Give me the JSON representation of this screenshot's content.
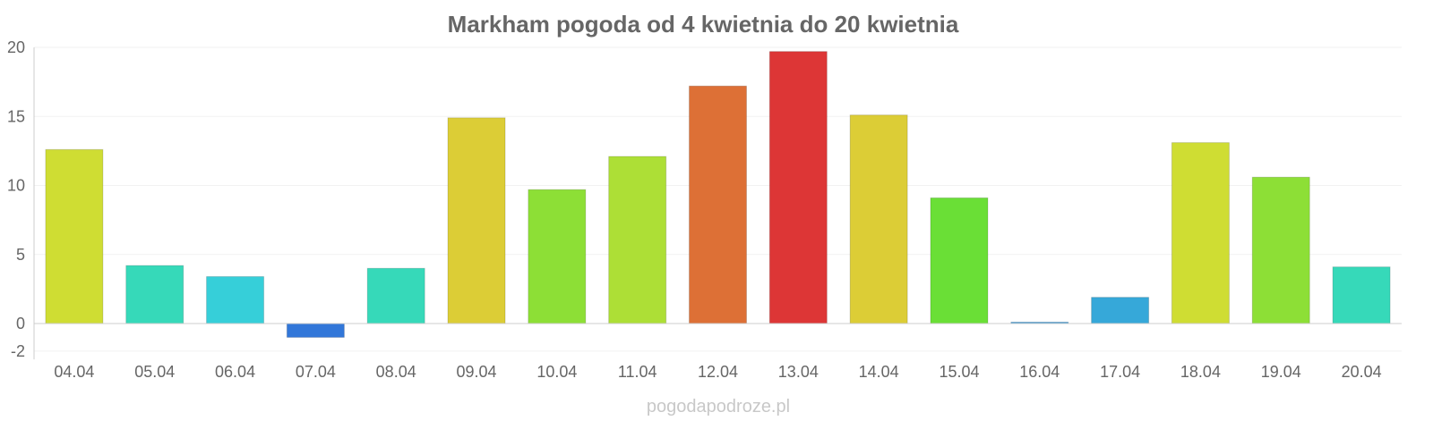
{
  "chart_data": {
    "type": "bar",
    "title": "Markham pogoda od 4 kwietnia do 20 kwietnia",
    "xlabel": "",
    "ylabel": "",
    "ylim": [
      -2.6,
      20
    ],
    "yticks": [
      20,
      15,
      10,
      5,
      0,
      -2
    ],
    "grid": true,
    "categories": [
      "04.04",
      "05.04",
      "06.04",
      "07.04",
      "08.04",
      "09.04",
      "10.04",
      "11.04",
      "12.04",
      "13.04",
      "14.04",
      "15.04",
      "16.04",
      "17.04",
      "18.04",
      "19.04",
      "20.04"
    ],
    "values": [
      12.6,
      4.2,
      3.4,
      -1.0,
      4.0,
      14.9,
      9.7,
      12.1,
      17.2,
      19.7,
      15.1,
      9.1,
      0.1,
      1.9,
      13.1,
      10.6,
      4.1
    ],
    "colors": [
      "#cfdd33",
      "#36d9b9",
      "#36cfd9",
      "#3277d9",
      "#36d9b9",
      "#dccd36",
      "#8ddf36",
      "#addf36",
      "#dd7036",
      "#dd3636",
      "#dccd36",
      "#6adf36",
      "#3699d9",
      "#36a8d9",
      "#cfdd33",
      "#8ddf36",
      "#36d9b9"
    ]
  },
  "watermark": "pogodapodroze.pl"
}
